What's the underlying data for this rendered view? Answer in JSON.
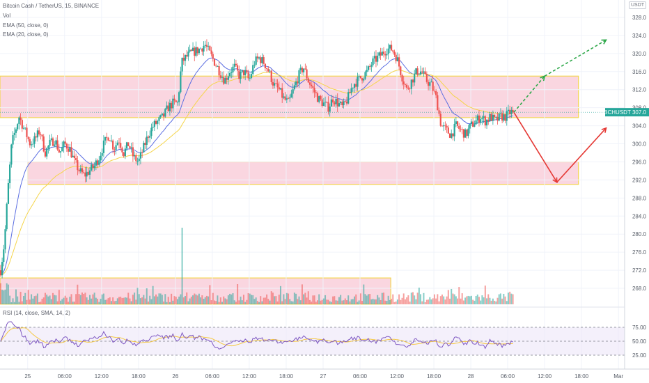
{
  "legend": {
    "title": "Bitcoin Cash / TetherUS, 15, BINANCE",
    "vol": "Vol",
    "ema50": "EMA (50, close, 0)",
    "ema20": "EMA (20, close, 0)",
    "rsi": "RSI (14, close, SMA, 14, 2)"
  },
  "symbol_badge": "USDT",
  "price_tag": {
    "symbol": "BCHUSDT",
    "value": "307.0"
  },
  "colors": {
    "up": "#26a69a",
    "down": "#ef5350",
    "ema50": "#5b6ee1",
    "ema20": "#f5d54a",
    "zone_fill": "#f8c8d6",
    "zone_border": "#f3d64e",
    "rsi_line": "#7e57c2",
    "rsi_ma": "#f5c842",
    "rsi_band": "#ece6f8",
    "arrow_up": "#2ea84a",
    "arrow_down": "#e53935",
    "price_tag_bg": "#26a69a"
  },
  "chart_data": {
    "type": "candlestick",
    "y_axis": {
      "ylim": [
        264,
        330
      ],
      "ticks": [
        "328.0",
        "324.0",
        "320.0",
        "316.0",
        "312.0",
        "308.0",
        "304.0",
        "300.0",
        "296.0",
        "292.0",
        "288.0",
        "284.0",
        "280.0",
        "276.0",
        "272.0",
        "268.0"
      ]
    },
    "x_axis": {
      "ticks": [
        "25",
        "06:00",
        "12:00",
        "18:00",
        "26",
        "06:00",
        "12:00",
        "18:00",
        "27",
        "06:00",
        "12:00",
        "18:00",
        "28",
        "06:00",
        "12:00",
        "18:00",
        "Mar"
      ],
      "tick_hours": [
        24,
        30,
        36,
        42,
        48,
        54,
        60,
        66,
        72,
        78,
        84,
        90,
        96,
        102,
        108,
        114,
        120
      ],
      "hour_range": [
        19.5,
        121
      ]
    },
    "last_price": 307.0,
    "price_path": [
      [
        19.6,
        272
      ],
      [
        20.2,
        278
      ],
      [
        20.8,
        290
      ],
      [
        21.4,
        300
      ],
      [
        22.0,
        303
      ],
      [
        22.6,
        306
      ],
      [
        23.2,
        304
      ],
      [
        23.8,
        302
      ],
      [
        24.4,
        300
      ],
      [
        25.2,
        301
      ],
      [
        26.0,
        303
      ],
      [
        26.8,
        298
      ],
      [
        27.6,
        300
      ],
      [
        28.4,
        301
      ],
      [
        29.2,
        298
      ],
      [
        30.0,
        300
      ],
      [
        30.8,
        299
      ],
      [
        31.6,
        296
      ],
      [
        32.4,
        294
      ],
      [
        33.2,
        293
      ],
      [
        34.0,
        294
      ],
      [
        34.8,
        295
      ],
      [
        35.6,
        297
      ],
      [
        36.4,
        300
      ],
      [
        37.2,
        302
      ],
      [
        38.0,
        299
      ],
      [
        38.8,
        301
      ],
      [
        39.6,
        298
      ],
      [
        40.4,
        300
      ],
      [
        41.2,
        297
      ],
      [
        42.0,
        296
      ],
      [
        42.8,
        299
      ],
      [
        43.6,
        302
      ],
      [
        44.4,
        304
      ],
      [
        45.2,
        305
      ],
      [
        46.0,
        306
      ],
      [
        46.8,
        308
      ],
      [
        47.6,
        309
      ],
      [
        48.4,
        309
      ],
      [
        49.0,
        318
      ],
      [
        49.6,
        319
      ],
      [
        50.4,
        320
      ],
      [
        51.2,
        320.5
      ],
      [
        52.0,
        321
      ],
      [
        52.8,
        322
      ],
      [
        53.6,
        320
      ],
      [
        54.4,
        318
      ],
      [
        55.2,
        316
      ],
      [
        56.0,
        314
      ],
      [
        56.8,
        316
      ],
      [
        57.6,
        317
      ],
      [
        58.4,
        315
      ],
      [
        59.2,
        316
      ],
      [
        60.0,
        314
      ],
      [
        60.8,
        318
      ],
      [
        61.6,
        319
      ],
      [
        62.4,
        318
      ],
      [
        63.2,
        316
      ],
      [
        64.0,
        313
      ],
      [
        64.8,
        312
      ],
      [
        65.6,
        310
      ],
      [
        66.4,
        309
      ],
      [
        67.2,
        312
      ],
      [
        68.0,
        315
      ],
      [
        68.8,
        317
      ],
      [
        69.6,
        314
      ],
      [
        70.4,
        312
      ],
      [
        71.2,
        310
      ],
      [
        72.0,
        309
      ],
      [
        72.8,
        308
      ],
      [
        73.6,
        310
      ],
      [
        74.4,
        309
      ],
      [
        75.2,
        308
      ],
      [
        76.0,
        310
      ],
      [
        76.8,
        313
      ],
      [
        77.6,
        314
      ],
      [
        78.4,
        315
      ],
      [
        79.2,
        316
      ],
      [
        80.0,
        318
      ],
      [
        80.8,
        319
      ],
      [
        81.6,
        320
      ],
      [
        82.4,
        321
      ],
      [
        83.2,
        321
      ],
      [
        84.0,
        319
      ],
      [
        84.8,
        315
      ],
      [
        85.6,
        312
      ],
      [
        86.4,
        314
      ],
      [
        87.2,
        316
      ],
      [
        88.0,
        316
      ],
      [
        88.8,
        314
      ],
      [
        89.6,
        313
      ],
      [
        90.4,
        310
      ],
      [
        91.2,
        304
      ],
      [
        92.0,
        303
      ],
      [
        92.8,
        302
      ],
      [
        93.6,
        304
      ],
      [
        94.4,
        303
      ],
      [
        95.2,
        302
      ],
      [
        96.0,
        304
      ],
      [
        96.8,
        305
      ],
      [
        97.6,
        306
      ],
      [
        98.4,
        305
      ],
      [
        99.2,
        306
      ],
      [
        100.0,
        305
      ],
      [
        100.8,
        306
      ],
      [
        101.6,
        306
      ],
      [
        102.4,
        307
      ],
      [
        103.0,
        307
      ]
    ],
    "zones": [
      {
        "from_hour": 19.5,
        "to_hour": 113.5,
        "low": 305.8,
        "high": 315.0
      },
      {
        "from_hour": 24.0,
        "to_hour": 113.5,
        "low": 291.0,
        "high": 296.0
      },
      {
        "from_hour": 19.5,
        "to_hour": 83.0,
        "low": 264.5,
        "high": 270.3
      }
    ],
    "projections": [
      {
        "color": "up",
        "dashed": true,
        "points": [
          [
            103,
            307
          ],
          [
            108,
            315
          ]
        ],
        "continuation": [
          [
            108,
            315
          ],
          [
            118,
            323
          ]
        ]
      },
      {
        "color": "down",
        "dashed": false,
        "points": [
          [
            103,
            307
          ],
          [
            110,
            291.5
          ],
          [
            118,
            303.5
          ]
        ]
      }
    ],
    "rsi": {
      "ticks": [
        "75.00",
        "50.00",
        "25.00"
      ],
      "levels": [
        70,
        50,
        30
      ],
      "ylim": [
        20,
        80
      ]
    }
  }
}
